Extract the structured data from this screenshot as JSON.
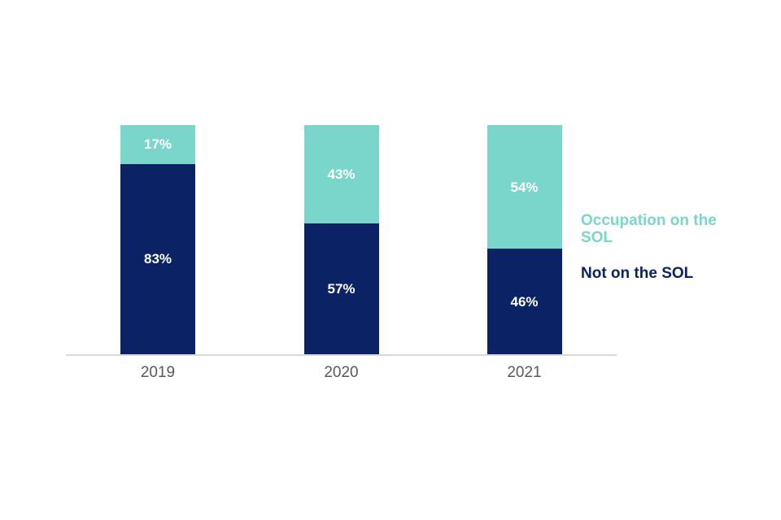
{
  "chart_data": {
    "type": "bar",
    "stacked": true,
    "title": "",
    "xlabel": "",
    "ylabel": "",
    "ylim": [
      0,
      100
    ],
    "grid": false,
    "legend_position": "right",
    "categories": [
      "2019",
      "2020",
      "2021"
    ],
    "series": [
      {
        "name": "Not on the SOL",
        "color": "#0b2265",
        "values": [
          83,
          57,
          46
        ]
      },
      {
        "name": "Occupation on the SOL",
        "color": "#7ad6cb",
        "values": [
          17,
          43,
          54
        ]
      }
    ],
    "value_label_suffix": "%",
    "value_label_color": "#ffffff",
    "legend": [
      {
        "label": "Occupation on the SOL",
        "color": "#7ad6cb"
      },
      {
        "label": "Not on the SOL",
        "color": "#0b2265"
      }
    ],
    "axis_line_color": "#d9d9d9",
    "tick_label_color": "#595959"
  }
}
